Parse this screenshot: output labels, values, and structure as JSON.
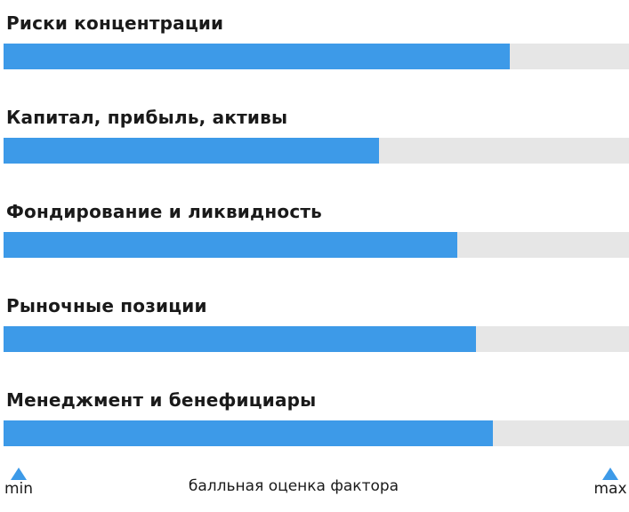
{
  "chart_data": {
    "type": "bar",
    "orientation": "horizontal",
    "categories": [
      "Риски концентрации",
      "Капитал, прибыль, активы",
      "Фондирование и ликвидность",
      "Рыночные позиции",
      "Менеджмент и бенефициары"
    ],
    "values": [
      0.81,
      0.6,
      0.725,
      0.755,
      0.783
    ],
    "xlim": [
      0,
      1
    ],
    "colors": {
      "bar": "#3d9ae8",
      "track": "#e6e6e6"
    }
  },
  "scale": {
    "min_label": "min",
    "max_label": "max",
    "caption": "балльная оценка фактора"
  }
}
